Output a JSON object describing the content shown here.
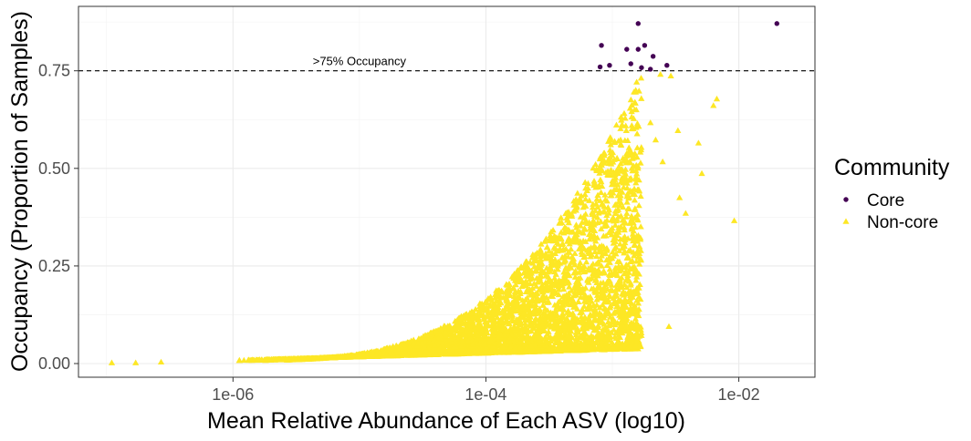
{
  "chart_data": {
    "type": "scatter",
    "xlabel": "Mean Relative Abundance of Each ASV (log10)",
    "ylabel": "Occupancy (Proportion of Samples)",
    "x_scale": "log10",
    "xlim": [
      6e-08,
      0.04
    ],
    "ylim": [
      -0.035,
      0.915
    ],
    "x_ticks": [
      {
        "value": 1e-06,
        "label": "1e-06"
      },
      {
        "value": 0.0001,
        "label": "1e-04"
      },
      {
        "value": 0.01,
        "label": "1e-02"
      }
    ],
    "x_minor_ticks": [
      1e-07,
      1e-05,
      0.001
    ],
    "y_ticks": [
      {
        "value": 0.0,
        "label": "0.00"
      },
      {
        "value": 0.25,
        "label": "0.25"
      },
      {
        "value": 0.5,
        "label": "0.50"
      },
      {
        "value": 0.75,
        "label": "0.75"
      }
    ],
    "y_minor_ticks": [
      0.125,
      0.375,
      0.625,
      0.875
    ],
    "grid": true,
    "legend": {
      "title": "Community",
      "position": "right",
      "entries": [
        {
          "label": "Core",
          "shape": "circle",
          "color": "#440154"
        },
        {
          "label": "Non-core",
          "shape": "triangle",
          "color": "#FDE725"
        }
      ]
    },
    "threshold": {
      "y": 0.75,
      "style": "dashed",
      "label": ">75% Occupancy",
      "label_x": 1e-05
    },
    "series": [
      {
        "name": "Core",
        "shape": "circle",
        "color": "#440154",
        "points": [
          [
            0.02,
            0.871
          ],
          [
            0.0016,
            0.871
          ],
          [
            0.00082,
            0.815
          ],
          [
            0.0013,
            0.805
          ],
          [
            0.0018,
            0.815
          ],
          [
            0.0016,
            0.805
          ],
          [
            0.0021,
            0.787
          ],
          [
            0.0014,
            0.768
          ],
          [
            0.0027,
            0.764
          ],
          [
            0.0008,
            0.76
          ],
          [
            0.00095,
            0.764
          ],
          [
            0.002,
            0.754
          ],
          [
            0.0017,
            0.758
          ]
        ]
      },
      {
        "name": "Non-core",
        "shape": "triangle",
        "color": "#FDE725",
        "cloud": {
          "count": 4200,
          "x_min": 1.05e-06,
          "x_max": 0.0017,
          "occ_min": 0.008,
          "occ_max": 0.75
        },
        "points": [
          [
            1.1e-07,
            0.002
          ],
          [
            1.7e-07,
            0.002
          ],
          [
            2.7e-07,
            0.004
          ],
          [
            0.0092,
            0.366
          ],
          [
            0.0067,
            0.678
          ],
          [
            0.0063,
            0.661
          ],
          [
            0.0051,
            0.487
          ],
          [
            0.0048,
            0.565
          ],
          [
            0.0038,
            0.385
          ],
          [
            0.0034,
            0.425
          ],
          [
            0.0033,
            0.597
          ],
          [
            0.0028,
            0.095
          ],
          [
            0.0029,
            0.737
          ],
          [
            0.0025,
            0.517
          ],
          [
            0.0022,
            0.573
          ],
          [
            0.002,
            0.617
          ],
          [
            0.0024,
            0.741
          ]
        ]
      }
    ]
  }
}
